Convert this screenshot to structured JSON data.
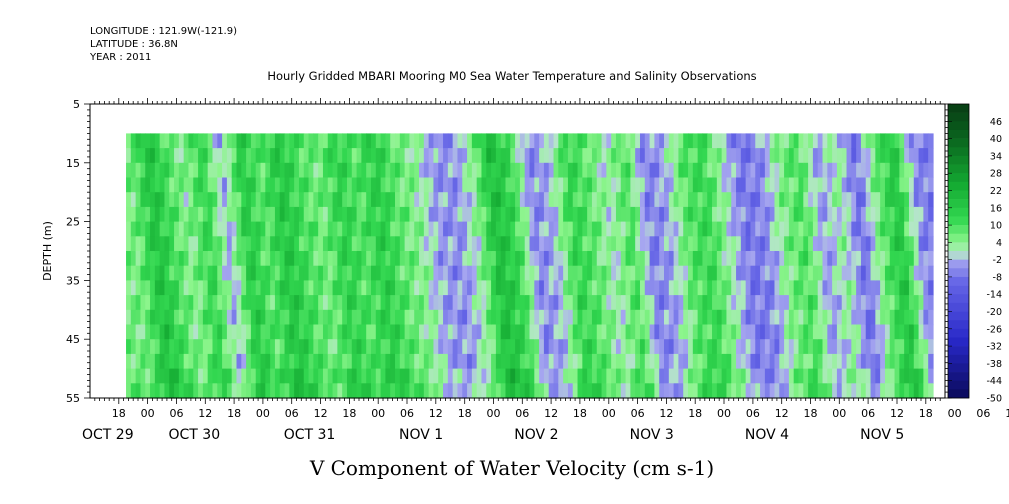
{
  "header": {
    "longitude": "LONGITUDE : 121.9W(-121.9)",
    "latitude": "LATITUDE : 36.8N",
    "year": "YEAR : 2011"
  },
  "chart_data": {
    "type": "heatmap",
    "title": "Hourly Gridded MBARI Mooring M0 Sea Water Temperature and Salinity Observations",
    "xlabel": "V Component of Water Velocity (cm s-1)",
    "ylabel": "DEPTH (m)",
    "ylim": [
      5,
      55
    ],
    "y_inverted": true,
    "y_ticks": [
      5,
      15,
      25,
      35,
      45,
      55
    ],
    "x_range_hours": [
      0,
      178
    ],
    "x_hour_ticks": [
      "18",
      "00",
      "06",
      "12",
      "18",
      "00",
      "06",
      "12",
      "18",
      "00",
      "06",
      "12",
      "18",
      "00",
      "06",
      "12",
      "18",
      "00",
      "06",
      "12",
      "18",
      "00",
      "06",
      "12",
      "18",
      "00",
      "06",
      "12",
      "18",
      "00",
      "06",
      "12"
    ],
    "x_day_labels": [
      "OCT 29",
      "OCT 30",
      "OCT 31",
      "NOV  1",
      "NOV  2",
      "NOV  3",
      "NOV  4",
      "NOV  5"
    ],
    "data_depth_range": [
      10,
      55
    ],
    "data_time_range_hours": [
      7.5,
      175.5
    ],
    "colorbar_levels": [
      "46",
      "40",
      "34",
      "28",
      "22",
      "16",
      "10",
      "4",
      "-2",
      "-8",
      "-14",
      "-20",
      "-26",
      "-32",
      "-38",
      "-44",
      "-50"
    ],
    "colorbar_range": [
      -50,
      52
    ],
    "velocity_profile": {
      "hours": [
        8,
        12,
        16,
        19,
        23,
        27,
        31,
        35,
        39,
        43,
        47,
        51,
        55,
        59,
        63,
        67,
        71,
        75,
        79,
        83,
        87,
        91,
        95,
        99,
        103,
        107,
        111,
        115,
        119,
        123,
        127,
        131,
        135,
        139,
        143,
        147,
        151,
        155,
        159,
        163,
        167,
        171,
        175
      ],
      "values": [
        6,
        18,
        9,
        4,
        13,
        -3,
        16,
        8,
        17,
        10,
        6,
        14,
        9,
        15,
        8,
        4,
        -4,
        -5,
        3,
        19,
        12,
        -6,
        -2,
        13,
        8,
        1,
        10,
        -7,
        -3,
        9,
        12,
        2,
        -8,
        -6,
        5,
        10,
        -4,
        3,
        -9,
        7,
        17,
        -5,
        -8
      ]
    },
    "colors": {
      "strong_positive": "#0a4a1a",
      "positive": "#22cc44",
      "weak_positive": "#88f088",
      "weak_negative": "#a4a4f0",
      "negative": "#5050dd",
      "strong_negative": "#0a0a5a"
    }
  }
}
